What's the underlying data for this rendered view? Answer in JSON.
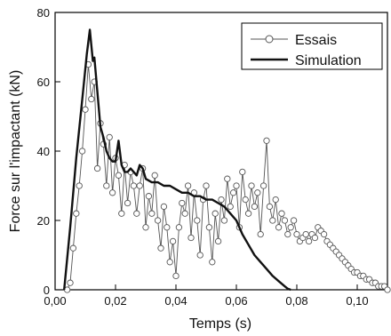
{
  "chart_data": {
    "type": "line",
    "xlabel": "Temps (s)",
    "ylabel": "Force sur l'impactant (kN)",
    "xlim": [
      0,
      0.11
    ],
    "ylim": [
      0,
      80
    ],
    "xticks": [
      "0,00",
      "0,02",
      "0,04",
      "0,06",
      "0,08",
      "0,10"
    ],
    "xtick_values": [
      0,
      0.02,
      0.04,
      0.06,
      0.08,
      0.1
    ],
    "yticks": [
      "0",
      "20",
      "40",
      "60",
      "80"
    ],
    "ytick_values": [
      0,
      20,
      40,
      60,
      80
    ],
    "legend_position": "top-right",
    "series": [
      {
        "name": "Essais",
        "style": "line-circles",
        "color": "#555555",
        "x": [
          0.004,
          0.005,
          0.006,
          0.007,
          0.008,
          0.009,
          0.01,
          0.011,
          0.012,
          0.013,
          0.014,
          0.015,
          0.016,
          0.017,
          0.018,
          0.019,
          0.02,
          0.021,
          0.022,
          0.023,
          0.024,
          0.025,
          0.026,
          0.027,
          0.028,
          0.029,
          0.03,
          0.031,
          0.032,
          0.033,
          0.034,
          0.035,
          0.036,
          0.037,
          0.038,
          0.039,
          0.04,
          0.041,
          0.042,
          0.043,
          0.044,
          0.045,
          0.046,
          0.047,
          0.048,
          0.049,
          0.05,
          0.051,
          0.052,
          0.053,
          0.054,
          0.055,
          0.056,
          0.057,
          0.058,
          0.059,
          0.06,
          0.061,
          0.062,
          0.063,
          0.064,
          0.065,
          0.066,
          0.067,
          0.068,
          0.069,
          0.07,
          0.071,
          0.072,
          0.073,
          0.074,
          0.075,
          0.076,
          0.077,
          0.078,
          0.079,
          0.08,
          0.081,
          0.082,
          0.083,
          0.084,
          0.085,
          0.086,
          0.087,
          0.088,
          0.089,
          0.09,
          0.091,
          0.092,
          0.093,
          0.094,
          0.095,
          0.096,
          0.097,
          0.098,
          0.099,
          0.1,
          0.101,
          0.102,
          0.103,
          0.104,
          0.105,
          0.106,
          0.107,
          0.108,
          0.109,
          0.11
        ],
        "y": [
          0,
          2,
          12,
          22,
          30,
          40,
          52,
          65,
          55,
          60,
          35,
          48,
          42,
          30,
          44,
          28,
          38,
          33,
          22,
          36,
          25,
          34,
          30,
          22,
          30,
          35,
          18,
          27,
          22,
          33,
          20,
          12,
          24,
          18,
          8,
          14,
          4,
          18,
          25,
          22,
          30,
          15,
          28,
          20,
          10,
          26,
          30,
          18,
          8,
          22,
          14,
          26,
          20,
          32,
          24,
          28,
          30,
          18,
          34,
          26,
          22,
          30,
          24,
          28,
          16,
          30,
          43,
          24,
          20,
          26,
          18,
          22,
          20,
          16,
          18,
          20,
          16,
          14,
          15,
          16,
          14,
          16,
          15,
          18,
          17,
          16,
          14,
          13,
          12,
          11,
          10,
          9,
          8,
          7,
          6,
          5,
          5,
          4,
          4,
          3,
          3,
          2,
          2,
          1,
          1,
          1,
          0
        ]
      },
      {
        "name": "Simulation",
        "style": "line",
        "color": "#111111",
        "x": [
          0.003,
          0.005,
          0.007,
          0.009,
          0.0105,
          0.0115,
          0.0125,
          0.013,
          0.014,
          0.015,
          0.016,
          0.017,
          0.018,
          0.019,
          0.02,
          0.021,
          0.022,
          0.023,
          0.024,
          0.025,
          0.026,
          0.027,
          0.028,
          0.029,
          0.03,
          0.032,
          0.034,
          0.036,
          0.038,
          0.04,
          0.042,
          0.044,
          0.046,
          0.048,
          0.05,
          0.052,
          0.054,
          0.056,
          0.058,
          0.06,
          0.062,
          0.064,
          0.066,
          0.068,
          0.07,
          0.072,
          0.074,
          0.076,
          0.077,
          0.078
        ],
        "y": [
          0,
          18,
          38,
          55,
          68,
          75,
          66,
          67,
          57,
          47,
          44,
          40,
          38,
          37,
          37,
          43,
          36,
          34,
          34,
          35,
          34,
          33,
          36,
          35,
          32,
          31,
          31,
          30,
          30,
          29,
          28,
          28,
          27,
          27,
          26,
          26,
          25,
          24,
          22,
          20,
          16,
          13,
          10,
          8,
          6,
          4,
          2.5,
          1,
          0.3,
          0
        ]
      }
    ]
  }
}
